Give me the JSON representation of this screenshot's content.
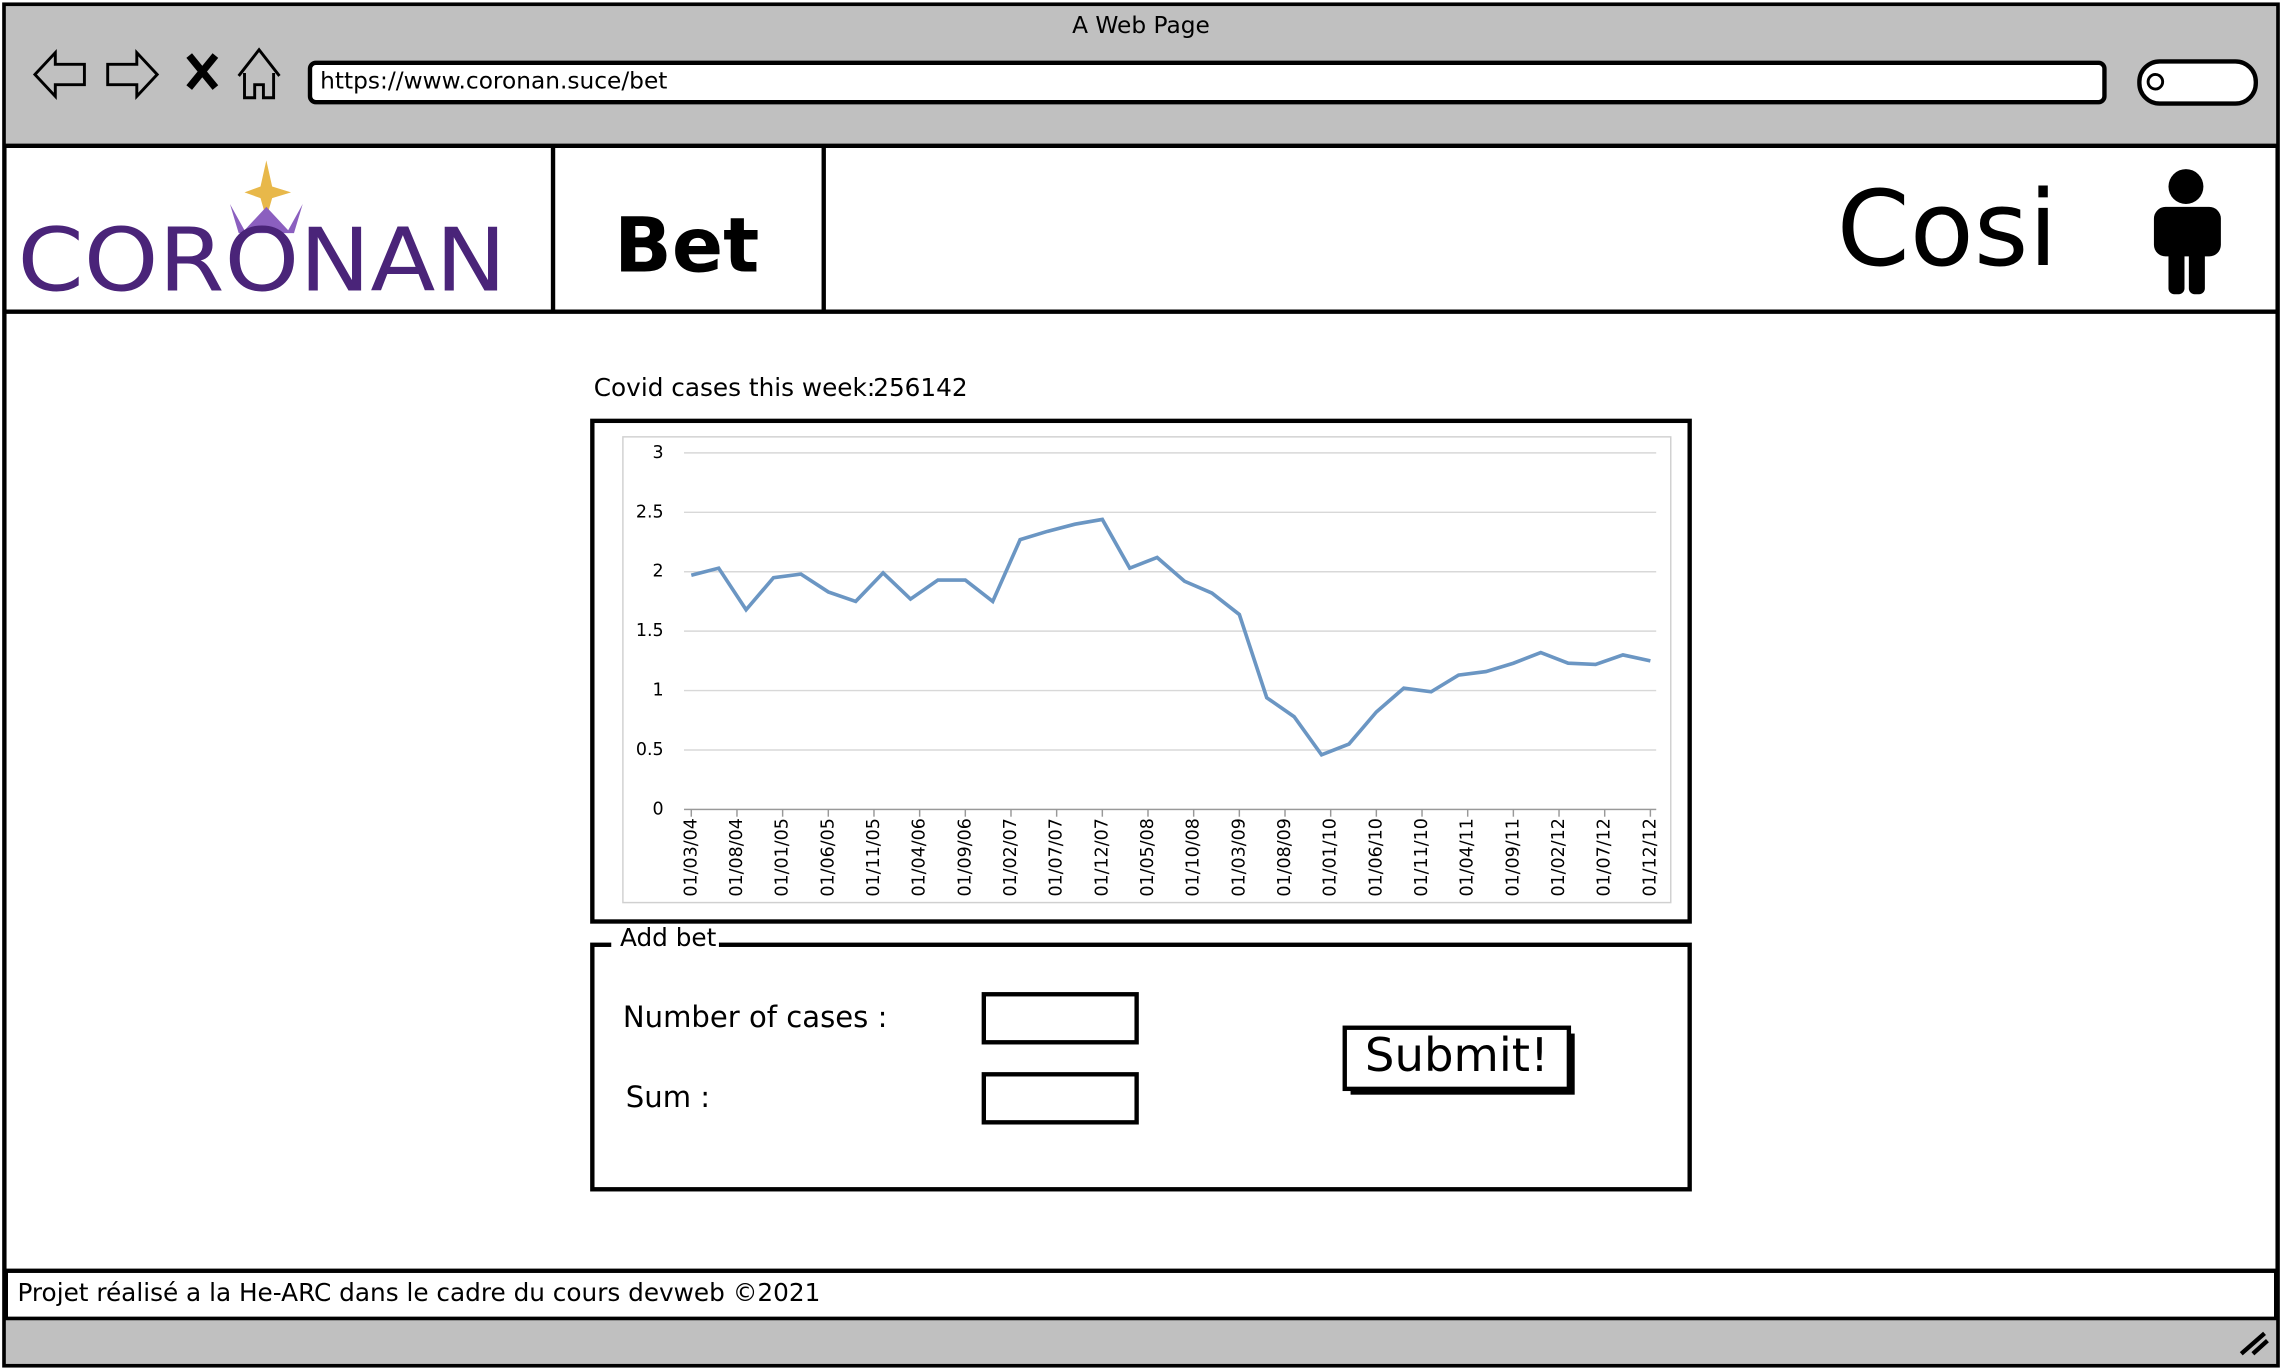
{
  "window": {
    "title": "A Web Page",
    "url": "https://www.coronan.suce/bet"
  },
  "header": {
    "logo": "CORONAN",
    "nav": "Bet",
    "user": "Cosi"
  },
  "stats": {
    "label": "Covid cases this week:",
    "value": "256142"
  },
  "chart_data": {
    "type": "line",
    "xticks": [
      "01/03/04",
      "01/08/04",
      "01/01/05",
      "01/06/05",
      "01/11/05",
      "01/04/06",
      "01/09/06",
      "01/02/07",
      "01/07/07",
      "01/12/07",
      "01/05/08",
      "01/10/08",
      "01/03/09",
      "01/08/09",
      "01/01/10",
      "01/06/10",
      "01/11/10",
      "01/04/11",
      "01/09/11",
      "01/02/12",
      "01/07/12",
      "01/12/12"
    ],
    "values": [
      1.97,
      2.03,
      1.68,
      1.95,
      1.98,
      1.83,
      1.75,
      1.99,
      1.77,
      1.93,
      1.93,
      1.75,
      2.27,
      2.34,
      2.4,
      2.44,
      2.03,
      2.12,
      1.92,
      1.82,
      1.64,
      0.94,
      0.78,
      0.46,
      0.55,
      0.82,
      1.02,
      0.99,
      1.13,
      1.16,
      1.23,
      1.32,
      1.23,
      1.22,
      1.3,
      1.25
    ],
    "color": "#6b96c3",
    "ylim": [
      0,
      3
    ],
    "yticks": [
      0,
      0.5,
      1,
      1.5,
      2,
      2.5,
      3
    ],
    "grid": true
  },
  "form": {
    "legend": "Add bet",
    "cases_label": "Number of cases :",
    "sum_label": "Sum :",
    "submit": "Submit!"
  },
  "footer": {
    "text": "Projet réalisé a la He-ARC dans le cadre du cours devweb ©2021"
  }
}
